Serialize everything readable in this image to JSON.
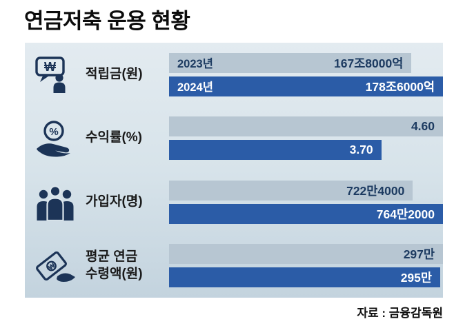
{
  "source": "자료 : 금융감독원",
  "colors": {
    "bar_2023": "#b7c6d2",
    "bar_2024": "#2b5ca7",
    "bar_2023_text": "#1d3b61",
    "bar_2024_text": "#ffffff",
    "panel_top": "#e3ebf0",
    "panel_bottom": "#c3d3de",
    "icon": "#1c3457"
  },
  "chart_data": {
    "type": "bar",
    "orientation": "horizontal",
    "title": "연금저축 운용 현황",
    "series_labels": [
      "2023년",
      "2024년"
    ],
    "legend_position": "inline-first-row",
    "grid": false,
    "rows": [
      {
        "label": "적립금(원)",
        "icon": "won-speech-bubble-icon",
        "bars": [
          {
            "series": "2023년",
            "value": 167.8,
            "unit": "조원",
            "value_label": "167조8000억",
            "width_pct": 88.5
          },
          {
            "series": "2024년",
            "value": 178.6,
            "unit": "조원",
            "value_label": "178조6000억",
            "width_pct": 100
          }
        ]
      },
      {
        "label": "수익률(%)",
        "icon": "percent-hand-icon",
        "bars": [
          {
            "series": "2023년",
            "value": 4.6,
            "unit": "%",
            "value_label": "4.60",
            "width_pct": 100
          },
          {
            "series": "2024년",
            "value": 3.7,
            "unit": "%",
            "value_label": "3.70",
            "width_pct": 77.5
          }
        ]
      },
      {
        "label": "가입자(명)",
        "icon": "people-group-icon",
        "bars": [
          {
            "series": "2023년",
            "value": 7224000,
            "unit": "명",
            "value_label": "722만4000",
            "width_pct": 89
          },
          {
            "series": "2024년",
            "value": 7642000,
            "unit": "명",
            "value_label": "764만2000",
            "width_pct": 100
          }
        ]
      },
      {
        "label": "평균 연금\n수령액(원)",
        "icon": "money-hand-icon",
        "bars": [
          {
            "series": "2023년",
            "value": 2970000,
            "unit": "원",
            "value_label": "297만",
            "width_pct": 100
          },
          {
            "series": "2024년",
            "value": 2950000,
            "unit": "원",
            "value_label": "295만",
            "width_pct": 99
          }
        ]
      }
    ]
  }
}
